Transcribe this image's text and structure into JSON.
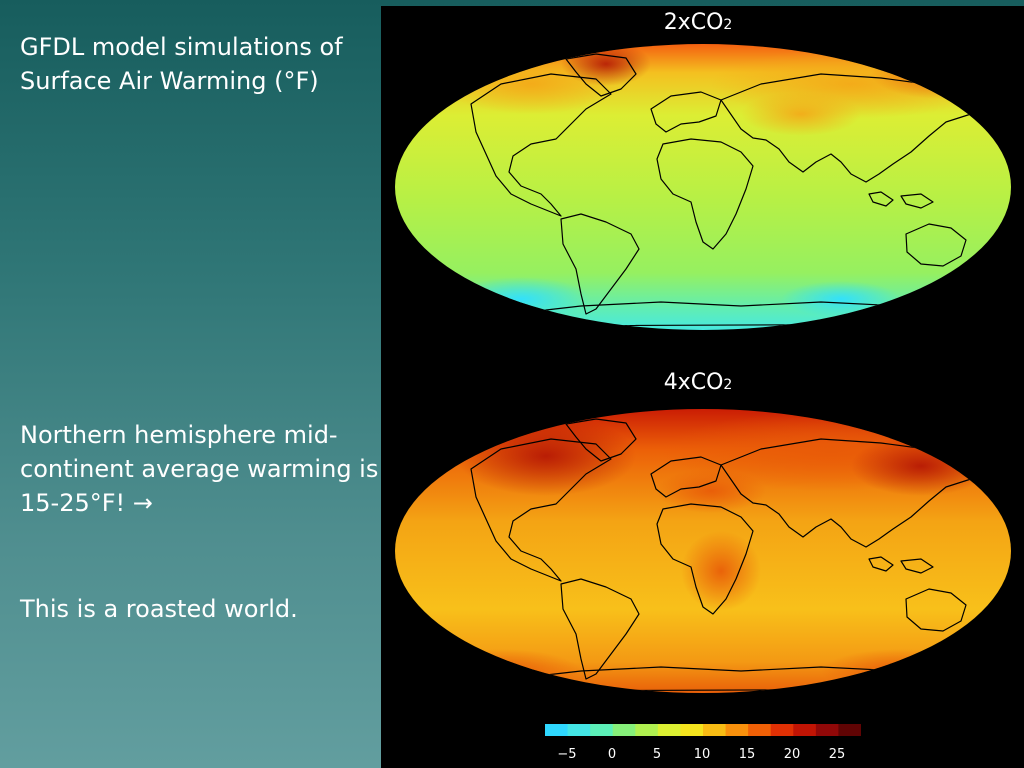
{
  "slide": {
    "title_line1": "GFDL model simulations of",
    "title_line2": "Surface Air Warming (°F)",
    "point1_line1": "Northern hemisphere mid-",
    "point1_line2": "continent average warming is",
    "point1_line3": "15-25°F! →",
    "point2": "This is a roasted world."
  },
  "maps": [
    {
      "label_prefix": "2xCO",
      "label_sub": "2",
      "scenario": "2xCO2"
    },
    {
      "label_prefix": "4xCO",
      "label_sub": "2",
      "scenario": "4xCO2"
    }
  ],
  "colorbar": {
    "colors": [
      "#2fd8ff",
      "#44e6e6",
      "#5cf0b8",
      "#86f07a",
      "#b0f050",
      "#dcf032",
      "#f4e41e",
      "#f8bc14",
      "#f8900c",
      "#f06006",
      "#e03004",
      "#c01404",
      "#900808",
      "#600404"
    ],
    "ticks": [
      "−5",
      "0",
      "5",
      "10",
      "15",
      "20",
      "25"
    ]
  }
}
